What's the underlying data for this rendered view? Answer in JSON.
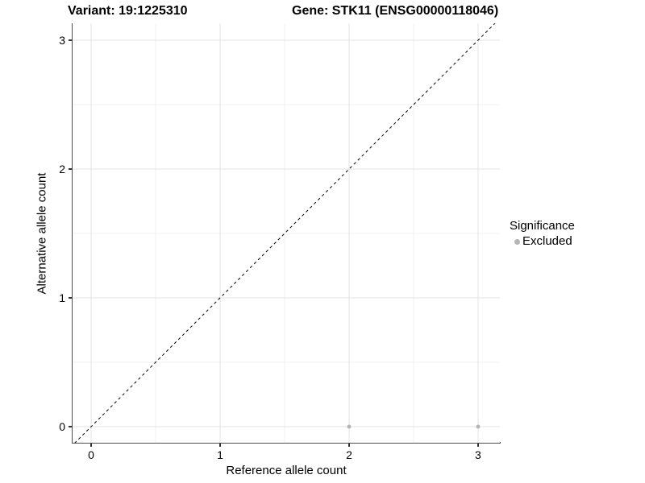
{
  "titles": {
    "variant": "Variant: 19:1225310",
    "gene": "Gene: STK11 (ENSG00000118046)"
  },
  "axes": {
    "x_title": "Reference allele count",
    "y_title": "Alternative allele count"
  },
  "legend": {
    "title": "Significance",
    "items": [
      {
        "label": "Excluded",
        "color": "#b5b5b5"
      }
    ]
  },
  "colors": {
    "background": "#ffffff",
    "grid_major": "#e3e3e3",
    "grid_minor": "#f0f0f0",
    "axis_line": "#4d4d4d",
    "tick_mark": "#333333",
    "identity_line": "#000000",
    "text": "#000000"
  },
  "chart_data": {
    "type": "scatter",
    "title_left": "Variant: 19:1225310",
    "title_right": "Gene: STK11 (ENSG00000118046)",
    "xlabel": "Reference allele count",
    "ylabel": "Alternative allele count",
    "xlim": [
      -0.144,
      3.169
    ],
    "ylim": [
      -0.125,
      3.131
    ],
    "x_ticks": [
      0,
      1,
      2,
      3
    ],
    "y_ticks": [
      0,
      1,
      2,
      3
    ],
    "x_minor_ticks": [
      0.5,
      1.5,
      2.5
    ],
    "y_minor_ticks": [
      0.5,
      1.5,
      2.5
    ],
    "grid": true,
    "legend_position": "right",
    "series": [
      {
        "name": "Excluded",
        "color": "#b5b5b5",
        "marker_radius": 2.5,
        "points": [
          [
            2,
            0
          ],
          [
            3,
            0
          ]
        ]
      }
    ],
    "reference_line": {
      "kind": "identity",
      "equation": "y = x",
      "style": "dashed",
      "color": "#000000",
      "dash": "3.5 3.5"
    }
  }
}
